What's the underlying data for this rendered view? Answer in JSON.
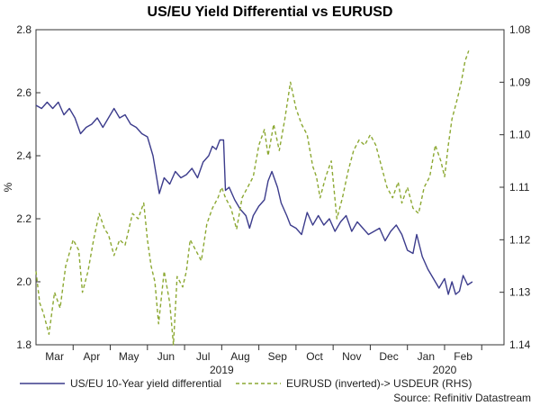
{
  "chart_data": {
    "type": "line",
    "title": "US/EU Yield Differential vs EURUSD",
    "ylabel": "%",
    "source": "Source: Refinitiv Datastream",
    "x_ticks": [
      {
        "label": "Mar",
        "t": 0.5
      },
      {
        "label": "Apr",
        "t": 1.5
      },
      {
        "label": "May",
        "t": 2.5
      },
      {
        "label": "Jun",
        "t": 3.5
      },
      {
        "label": "Jul",
        "t": 4.5
      },
      {
        "label": "Aug",
        "t": 5.5
      },
      {
        "label": "Sep",
        "t": 6.5
      },
      {
        "label": "Oct",
        "t": 7.5
      },
      {
        "label": "Nov",
        "t": 8.5
      },
      {
        "label": "Dec",
        "t": 9.5
      },
      {
        "label": "Jan",
        "t": 10.5
      },
      {
        "label": "Feb",
        "t": 11.5
      }
    ],
    "x_dividers": [
      1,
      2,
      3,
      4,
      5,
      6,
      7,
      8,
      9,
      10,
      11,
      12
    ],
    "year_labels": [
      {
        "label": "2019",
        "t": 5.0
      },
      {
        "label": "2020",
        "t": 11.0
      }
    ],
    "xlim": [
      0,
      12.6
    ],
    "y_left": {
      "lim": [
        1.8,
        2.8
      ],
      "ticks": [
        "1.8",
        "2.0",
        "2.2",
        "2.4",
        "2.6",
        "2.8"
      ]
    },
    "y_right": {
      "lim": [
        1.14,
        1.08
      ],
      "ticks": [
        "1.14",
        "1.13",
        "1.12",
        "1.11",
        "1.10",
        "1.09",
        "1.08"
      ]
    },
    "series": [
      {
        "name": "US/EU 10-Year yield differential",
        "axis": "left",
        "color": "#3c3c8c",
        "dash": "",
        "points": [
          [
            0.0,
            2.56
          ],
          [
            0.15,
            2.55
          ],
          [
            0.3,
            2.57
          ],
          [
            0.45,
            2.55
          ],
          [
            0.6,
            2.57
          ],
          [
            0.75,
            2.53
          ],
          [
            0.9,
            2.55
          ],
          [
            1.05,
            2.52
          ],
          [
            1.2,
            2.47
          ],
          [
            1.35,
            2.49
          ],
          [
            1.5,
            2.5
          ],
          [
            1.65,
            2.52
          ],
          [
            1.8,
            2.49
          ],
          [
            1.95,
            2.52
          ],
          [
            2.1,
            2.55
          ],
          [
            2.25,
            2.52
          ],
          [
            2.4,
            2.53
          ],
          [
            2.55,
            2.5
          ],
          [
            2.7,
            2.49
          ],
          [
            2.85,
            2.47
          ],
          [
            3.0,
            2.46
          ],
          [
            3.15,
            2.4
          ],
          [
            3.25,
            2.33
          ],
          [
            3.32,
            2.28
          ],
          [
            3.45,
            2.33
          ],
          [
            3.6,
            2.31
          ],
          [
            3.75,
            2.35
          ],
          [
            3.9,
            2.33
          ],
          [
            4.05,
            2.34
          ],
          [
            4.2,
            2.36
          ],
          [
            4.35,
            2.33
          ],
          [
            4.5,
            2.38
          ],
          [
            4.65,
            2.4
          ],
          [
            4.75,
            2.43
          ],
          [
            4.85,
            2.42
          ],
          [
            4.95,
            2.45
          ],
          [
            5.05,
            2.45
          ],
          [
            5.1,
            2.29
          ],
          [
            5.2,
            2.3
          ],
          [
            5.35,
            2.26
          ],
          [
            5.5,
            2.23
          ],
          [
            5.65,
            2.21
          ],
          [
            5.75,
            2.17
          ],
          [
            5.85,
            2.21
          ],
          [
            6.0,
            2.24
          ],
          [
            6.15,
            2.26
          ],
          [
            6.25,
            2.32
          ],
          [
            6.35,
            2.35
          ],
          [
            6.5,
            2.3
          ],
          [
            6.6,
            2.25
          ],
          [
            6.75,
            2.21
          ],
          [
            6.85,
            2.18
          ],
          [
            7.0,
            2.17
          ],
          [
            7.15,
            2.15
          ],
          [
            7.3,
            2.22
          ],
          [
            7.45,
            2.18
          ],
          [
            7.6,
            2.21
          ],
          [
            7.75,
            2.18
          ],
          [
            7.9,
            2.2
          ],
          [
            8.05,
            2.16
          ],
          [
            8.2,
            2.19
          ],
          [
            8.35,
            2.21
          ],
          [
            8.5,
            2.16
          ],
          [
            8.65,
            2.19
          ],
          [
            8.8,
            2.17
          ],
          [
            8.95,
            2.15
          ],
          [
            9.1,
            2.16
          ],
          [
            9.25,
            2.17
          ],
          [
            9.4,
            2.13
          ],
          [
            9.55,
            2.16
          ],
          [
            9.7,
            2.18
          ],
          [
            9.85,
            2.15
          ],
          [
            10.0,
            2.1
          ],
          [
            10.15,
            2.09
          ],
          [
            10.25,
            2.15
          ],
          [
            10.4,
            2.08
          ],
          [
            10.55,
            2.04
          ],
          [
            10.7,
            2.01
          ],
          [
            10.85,
            1.98
          ],
          [
            11.0,
            2.01
          ],
          [
            11.1,
            1.96
          ],
          [
            11.2,
            2.0
          ],
          [
            11.3,
            1.96
          ],
          [
            11.4,
            1.97
          ],
          [
            11.5,
            2.02
          ],
          [
            11.62,
            1.99
          ],
          [
            11.75,
            2.0
          ]
        ]
      },
      {
        "name": "EURUSD (inverted)-> USDEUR (RHS)",
        "axis": "right",
        "color": "#8ca832",
        "dash": "4,3",
        "points": [
          [
            0.0,
            1.126
          ],
          [
            0.1,
            1.132
          ],
          [
            0.2,
            1.134
          ],
          [
            0.35,
            1.138
          ],
          [
            0.5,
            1.13
          ],
          [
            0.65,
            1.133
          ],
          [
            0.8,
            1.125
          ],
          [
            1.0,
            1.12
          ],
          [
            1.15,
            1.122
          ],
          [
            1.25,
            1.13
          ],
          [
            1.4,
            1.126
          ],
          [
            1.55,
            1.12
          ],
          [
            1.7,
            1.115
          ],
          [
            1.85,
            1.118
          ],
          [
            1.95,
            1.119
          ],
          [
            2.1,
            1.123
          ],
          [
            2.25,
            1.12
          ],
          [
            2.4,
            1.121
          ],
          [
            2.6,
            1.115
          ],
          [
            2.75,
            1.116
          ],
          [
            2.9,
            1.113
          ],
          [
            3.0,
            1.12
          ],
          [
            3.1,
            1.125
          ],
          [
            3.2,
            1.128
          ],
          [
            3.3,
            1.136
          ],
          [
            3.45,
            1.126
          ],
          [
            3.6,
            1.132
          ],
          [
            3.7,
            1.14
          ],
          [
            3.8,
            1.127
          ],
          [
            3.95,
            1.129
          ],
          [
            4.05,
            1.126
          ],
          [
            4.15,
            1.12
          ],
          [
            4.3,
            1.122
          ],
          [
            4.45,
            1.124
          ],
          [
            4.6,
            1.117
          ],
          [
            4.75,
            1.114
          ],
          [
            4.9,
            1.112
          ],
          [
            5.0,
            1.11
          ],
          [
            5.1,
            1.112
          ],
          [
            5.25,
            1.114
          ],
          [
            5.4,
            1.118
          ],
          [
            5.55,
            1.112
          ],
          [
            5.7,
            1.11
          ],
          [
            5.85,
            1.108
          ],
          [
            6.0,
            1.102
          ],
          [
            6.15,
            1.099
          ],
          [
            6.25,
            1.104
          ],
          [
            6.4,
            1.098
          ],
          [
            6.55,
            1.103
          ],
          [
            6.7,
            1.097
          ],
          [
            6.85,
            1.09
          ],
          [
            7.0,
            1.095
          ],
          [
            7.15,
            1.098
          ],
          [
            7.3,
            1.1
          ],
          [
            7.45,
            1.106
          ],
          [
            7.55,
            1.108
          ],
          [
            7.65,
            1.112
          ],
          [
            7.8,
            1.108
          ],
          [
            7.95,
            1.105
          ],
          [
            8.1,
            1.116
          ],
          [
            8.25,
            1.112
          ],
          [
            8.4,
            1.107
          ],
          [
            8.55,
            1.103
          ],
          [
            8.7,
            1.101
          ],
          [
            8.85,
            1.102
          ],
          [
            9.0,
            1.1
          ],
          [
            9.15,
            1.102
          ],
          [
            9.3,
            1.106
          ],
          [
            9.45,
            1.11
          ],
          [
            9.6,
            1.112
          ],
          [
            9.75,
            1.109
          ],
          [
            9.85,
            1.113
          ],
          [
            10.0,
            1.11
          ],
          [
            10.15,
            1.114
          ],
          [
            10.3,
            1.115
          ],
          [
            10.45,
            1.11
          ],
          [
            10.6,
            1.108
          ],
          [
            10.75,
            1.102
          ],
          [
            10.9,
            1.105
          ],
          [
            11.0,
            1.108
          ],
          [
            11.1,
            1.102
          ],
          [
            11.2,
            1.097
          ],
          [
            11.35,
            1.093
          ],
          [
            11.45,
            1.09
          ],
          [
            11.55,
            1.086
          ],
          [
            11.65,
            1.084
          ]
        ]
      }
    ]
  }
}
